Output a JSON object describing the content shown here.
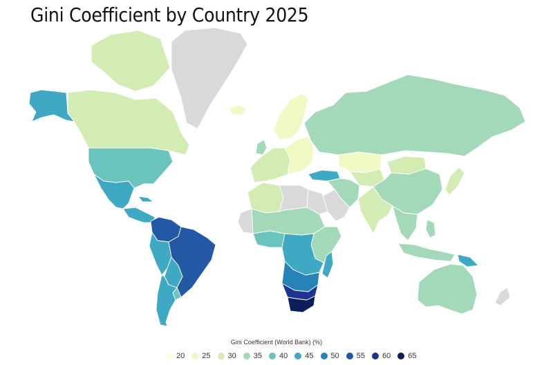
{
  "title": "Gini Coefficient by Country 2025",
  "legend": {
    "title": "Gini Coefficient (World Bank) (%)",
    "items": [
      {
        "label": "20",
        "color": "#ffffd9"
      },
      {
        "label": "25",
        "color": "#f0f9c4"
      },
      {
        "label": "30",
        "color": "#d3ecb3"
      },
      {
        "label": "35",
        "color": "#a3d9b8"
      },
      {
        "label": "40",
        "color": "#6bc3bd"
      },
      {
        "label": "45",
        "color": "#3fa9c3"
      },
      {
        "label": "50",
        "color": "#2682b7"
      },
      {
        "label": "55",
        "color": "#2358a4"
      },
      {
        "label": "60",
        "color": "#1f3390"
      },
      {
        "label": "65",
        "color": "#0c1f5c"
      }
    ]
  },
  "map": {
    "no_data_color": "#d9d9d9",
    "regions": [
      {
        "id": "alaska",
        "gini_bin": 45
      },
      {
        "id": "canada",
        "gini_bin": 30
      },
      {
        "id": "arctic-islands",
        "gini_bin": 30
      },
      {
        "id": "greenland",
        "gini_bin": null
      },
      {
        "id": "iceland",
        "gini_bin": 25
      },
      {
        "id": "usa",
        "gini_bin": 40
      },
      {
        "id": "mexico",
        "gini_bin": 45
      },
      {
        "id": "central-america",
        "gini_bin": 45
      },
      {
        "id": "colombia-venezuela",
        "gini_bin": 55
      },
      {
        "id": "brazil",
        "gini_bin": 55
      },
      {
        "id": "peru-ecuador",
        "gini_bin": 45
      },
      {
        "id": "bolivia-paraguay",
        "gini_bin": 45
      },
      {
        "id": "chile-argentina",
        "gini_bin": 45
      },
      {
        "id": "uruguay",
        "gini_bin": 40
      },
      {
        "id": "scandinavia",
        "gini_bin": 25
      },
      {
        "id": "western-europe",
        "gini_bin": 30
      },
      {
        "id": "eastern-europe",
        "gini_bin": 25
      },
      {
        "id": "uk",
        "gini_bin": 35
      },
      {
        "id": "turkey",
        "gini_bin": 45
      },
      {
        "id": "russia",
        "gini_bin": 35
      },
      {
        "id": "kazakhstan",
        "gini_bin": 25
      },
      {
        "id": "central-asia",
        "gini_bin": 30
      },
      {
        "id": "middle-east",
        "gini_bin": 35
      },
      {
        "id": "saudi-arabia",
        "gini_bin": null
      },
      {
        "id": "north-africa",
        "gini_bin": 30
      },
      {
        "id": "libya",
        "gini_bin": null
      },
      {
        "id": "sahel",
        "gini_bin": 35
      },
      {
        "id": "west-africa",
        "gini_bin": 40
      },
      {
        "id": "central-africa",
        "gini_bin": 45
      },
      {
        "id": "east-africa",
        "gini_bin": 35
      },
      {
        "id": "angola-zambia",
        "gini_bin": 50
      },
      {
        "id": "namibia-botswana",
        "gini_bin": 60
      },
      {
        "id": "south-africa",
        "gini_bin": 65
      },
      {
        "id": "madagascar",
        "gini_bin": 45
      },
      {
        "id": "india",
        "gini_bin": 30
      },
      {
        "id": "china",
        "gini_bin": 35
      },
      {
        "id": "mongolia",
        "gini_bin": 30
      },
      {
        "id": "japan",
        "gini_bin": 30
      },
      {
        "id": "southeast-asia",
        "gini_bin": 35
      },
      {
        "id": "indonesia",
        "gini_bin": 35
      },
      {
        "id": "papua-new-guinea",
        "gini_bin": 45
      },
      {
        "id": "australia",
        "gini_bin": 35
      },
      {
        "id": "new-zealand",
        "gini_bin": null
      }
    ]
  }
}
